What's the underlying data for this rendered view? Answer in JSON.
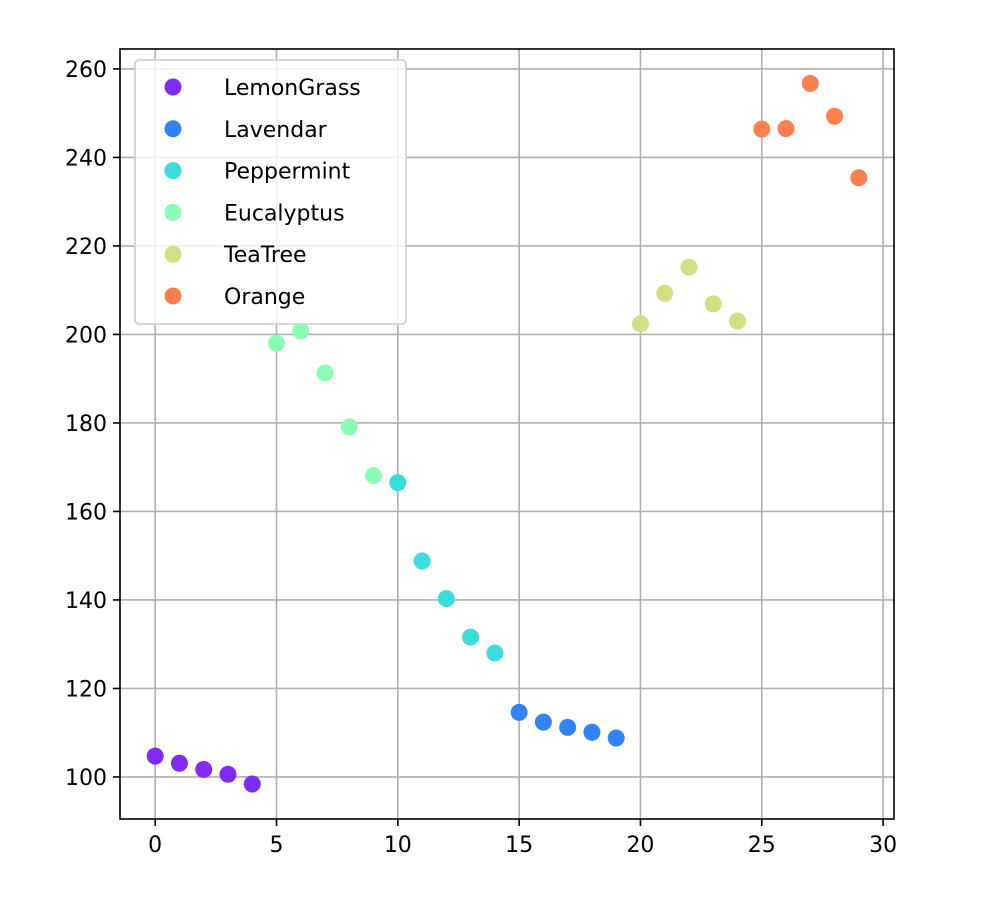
{
  "chart_data": {
    "type": "scatter",
    "title": "",
    "xlabel": "",
    "ylabel": "",
    "xlim": [
      -1.45,
      30.45
    ],
    "ylim": [
      90.5,
      264.5
    ],
    "x_ticks": [
      0,
      5,
      10,
      15,
      20,
      25,
      30
    ],
    "x_tick_labels": [
      "0",
      "5",
      "10",
      "15",
      "20",
      "25",
      "30"
    ],
    "y_ticks": [
      100,
      120,
      140,
      160,
      180,
      200,
      220,
      240,
      260
    ],
    "y_tick_labels": [
      "100",
      "120",
      "140",
      "160",
      "180",
      "200",
      "220",
      "240",
      "260"
    ],
    "grid": true,
    "legend_position": "upper-left",
    "series": [
      {
        "name": "LemonGrass",
        "color": "#7f2bf5",
        "x": [
          0,
          1,
          2,
          3,
          4
        ],
        "y": [
          104.7,
          103.1,
          101.7,
          100.6,
          98.4
        ]
      },
      {
        "name": "Lavendar",
        "color": "#3183f3",
        "x": [
          15,
          16,
          17,
          18,
          19
        ],
        "y": [
          114.6,
          112.4,
          111.2,
          110.1,
          108.8
        ]
      },
      {
        "name": "Peppermint",
        "color": "#3adcdc",
        "x": [
          10,
          11,
          12,
          13,
          14
        ],
        "y": [
          166.5,
          148.8,
          140.3,
          131.6,
          128.0
        ]
      },
      {
        "name": "Eucalyptus",
        "color": "#8bfcb4",
        "x": [
          5,
          6,
          7,
          8,
          9
        ],
        "y": [
          198.0,
          200.8,
          191.3,
          179.1,
          168.1
        ]
      },
      {
        "name": "TeaTree",
        "color": "#d3de83",
        "x": [
          20,
          21,
          22,
          23,
          24
        ],
        "y": [
          202.4,
          209.3,
          215.2,
          206.9,
          203.0
        ]
      },
      {
        "name": "Orange",
        "color": "#ff7f4f",
        "x": [
          25,
          26,
          27,
          28,
          29
        ],
        "y": [
          246.4,
          246.5,
          256.7,
          249.3,
          235.4
        ]
      }
    ]
  }
}
